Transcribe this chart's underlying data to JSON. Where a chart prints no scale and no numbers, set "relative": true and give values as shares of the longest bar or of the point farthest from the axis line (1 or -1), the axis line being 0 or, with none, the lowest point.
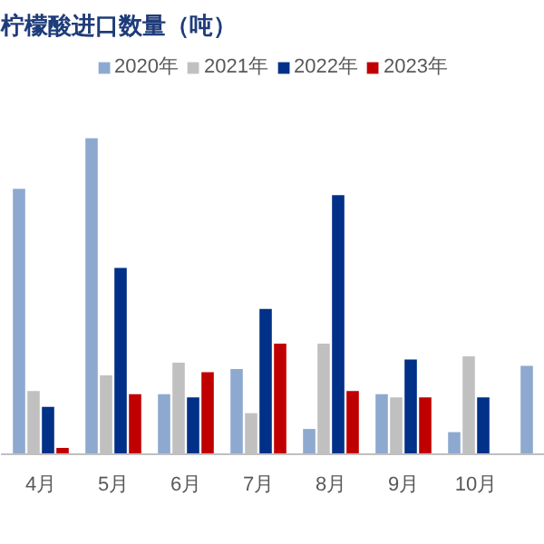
{
  "chart_data": {
    "type": "bar",
    "title": "柠檬酸进口数量（吨）",
    "relative": true,
    "legend": "top",
    "categories": [
      "4月",
      "5月",
      "6月",
      "7月",
      "8月",
      "9月",
      "10月",
      null
    ],
    "series": [
      {
        "name": "2020年",
        "color": "#8ea9cf",
        "values": [
          0.84,
          1,
          0.19,
          0.27,
          0.08,
          0.19,
          0.07,
          0.28
        ]
      },
      {
        "name": "2021年",
        "color": "#c0c0c0",
        "values": [
          0.2,
          0.25,
          0.29,
          0.13,
          0.35,
          0.18,
          0.31,
          null
        ]
      },
      {
        "name": "2022年",
        "color": "#003087",
        "values": [
          0.15,
          0.59,
          0.18,
          0.46,
          0.82,
          0.3,
          0.18,
          null
        ]
      },
      {
        "name": "2023年",
        "color": "#c00000",
        "values": [
          0.02,
          0.19,
          0.26,
          0.35,
          0.2,
          0.18,
          null,
          null
        ]
      }
    ]
  }
}
